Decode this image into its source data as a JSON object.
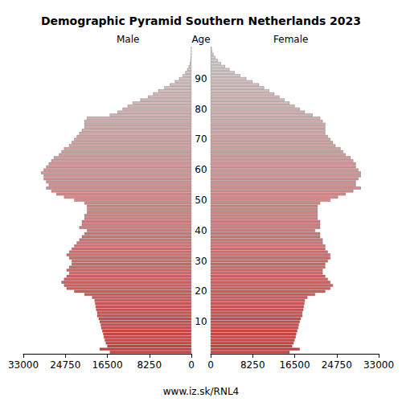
{
  "chart_data": {
    "type": "pyramid",
    "title": "Demographic Pyramid Southern Netherlands 2023",
    "y_label": "Age",
    "source": "www.iz.sk/RNL4",
    "categories": [
      null,
      null,
      null,
      null,
      null,
      null,
      null,
      null,
      null,
      null,
      "10",
      null,
      null,
      null,
      null,
      null,
      null,
      null,
      null,
      null,
      "20",
      null,
      null,
      null,
      null,
      null,
      null,
      null,
      null,
      null,
      "30",
      null,
      null,
      null,
      null,
      null,
      null,
      null,
      null,
      null,
      "40",
      null,
      null,
      null,
      null,
      null,
      null,
      null,
      null,
      null,
      "50",
      null,
      null,
      null,
      null,
      null,
      null,
      null,
      null,
      null,
      "60",
      null,
      null,
      null,
      null,
      null,
      null,
      null,
      null,
      null,
      "70",
      null,
      null,
      null,
      null,
      null,
      null,
      null,
      null,
      null,
      "80",
      null,
      null,
      null,
      null,
      null,
      null,
      null,
      null,
      null,
      "90",
      null,
      null,
      null,
      null,
      null,
      null,
      null,
      null,
      null,
      null
    ],
    "xlim": [
      0,
      33000
    ],
    "xticks": [
      0,
      8250,
      16500,
      24750,
      33000
    ],
    "orientation": "horizontal",
    "series": [
      {
        "name": "Male",
        "values": [
          16000,
          18000,
          16500,
          16800,
          17000,
          17200,
          17300,
          17500,
          17700,
          17800,
          18000,
          18200,
          18500,
          18500,
          18700,
          18800,
          18900,
          19000,
          19500,
          21000,
          23000,
          24500,
          25000,
          25500,
          25000,
          24500,
          24000,
          24500,
          24000,
          23500,
          23500,
          24000,
          24500,
          24000,
          23500,
          23000,
          22500,
          22000,
          21500,
          21000,
          20500,
          22000,
          21500,
          21500,
          21000,
          21000,
          20500,
          20500,
          20500,
          21000,
          23000,
          25000,
          26500,
          27500,
          28500,
          28000,
          28500,
          29000,
          29000,
          29500,
          29000,
          28500,
          28000,
          27500,
          27000,
          26000,
          25500,
          25000,
          24000,
          23500,
          23000,
          22500,
          22000,
          21500,
          21000,
          21000,
          21000,
          20500,
          16000,
          14500,
          13500,
          12500,
          11500,
          10000,
          8500,
          7500,
          6500,
          5300,
          4200,
          3200,
          2400,
          1700,
          1200,
          800,
          500,
          300,
          180,
          100,
          60,
          30,
          20
        ]
      },
      {
        "name": "Female",
        "values": [
          15500,
          17500,
          16000,
          16300,
          16500,
          16700,
          16800,
          17000,
          17200,
          17300,
          17500,
          17700,
          18000,
          18000,
          18200,
          18300,
          18400,
          18500,
          19000,
          20500,
          22500,
          23500,
          24000,
          23500,
          23000,
          22500,
          22000,
          22000,
          22500,
          22500,
          23000,
          23500,
          23500,
          23000,
          22500,
          22500,
          22000,
          22000,
          21500,
          21500,
          20500,
          21500,
          21500,
          21500,
          21000,
          21000,
          21000,
          21000,
          21000,
          21500,
          23500,
          25000,
          26500,
          28000,
          29500,
          28500,
          28500,
          29000,
          29500,
          29500,
          29000,
          28500,
          28500,
          28000,
          27500,
          26500,
          26000,
          25500,
          24500,
          24000,
          23500,
          23000,
          22500,
          22500,
          22500,
          22500,
          22000,
          21500,
          20000,
          18500,
          17500,
          16500,
          15500,
          14500,
          13500,
          12500,
          11500,
          10500,
          9500,
          8200,
          7000,
          5800,
          4700,
          3700,
          2800,
          2000,
          1400,
          900,
          550,
          300,
          200
        ]
      }
    ]
  }
}
